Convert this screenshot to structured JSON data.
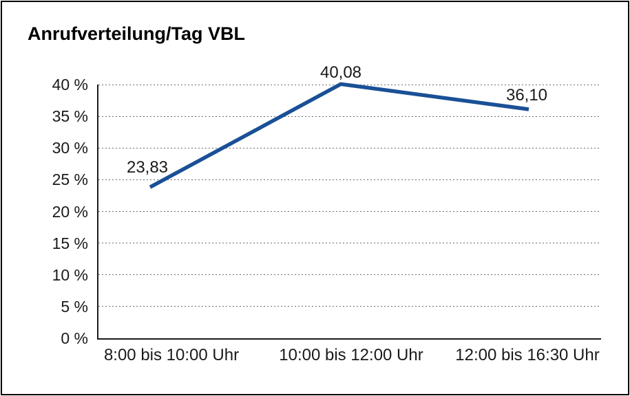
{
  "chart_data": {
    "type": "line",
    "title": "Anrufverteilung/Tag VBL",
    "categories": [
      "8:00 bis 10:00 Uhr",
      "10:00 bis 12:00 Uhr",
      "12:00 bis 16:30 Uhr"
    ],
    "values": [
      23.83,
      40.08,
      36.1
    ],
    "point_labels": [
      "23,83",
      "40,08",
      "36,10"
    ],
    "y_ticks": [
      "0 %",
      "5 %",
      "10 %",
      "15 %",
      "20 %",
      "25 %",
      "30 %",
      "35 %",
      "40 %"
    ],
    "y_tick_values": [
      0,
      5,
      10,
      15,
      20,
      25,
      30,
      35,
      40
    ],
    "ylim": [
      0,
      40
    ],
    "xlabel": "",
    "ylabel": "",
    "grid": "horizontal-dotted",
    "legend": "none",
    "line_color": "#1A5096"
  }
}
